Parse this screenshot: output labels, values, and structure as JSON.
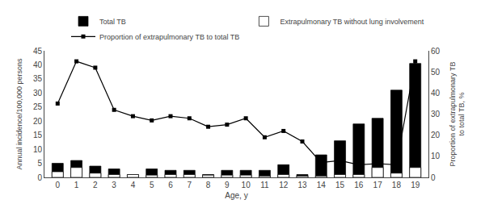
{
  "chart_data": {
    "type": "bar",
    "x": [
      0,
      1,
      2,
      3,
      4,
      5,
      6,
      7,
      8,
      9,
      10,
      11,
      12,
      13,
      14,
      15,
      16,
      17,
      18,
      19
    ],
    "series": [
      {
        "name": "Total TB",
        "type": "bar",
        "color": "#000000",
        "values": [
          5.0,
          6.0,
          4.0,
          3.0,
          1.0,
          3.0,
          2.5,
          2.5,
          1.0,
          2.5,
          2.5,
          2.5,
          4.5,
          1.0,
          8.0,
          13.0,
          19.0,
          21.0,
          31.0,
          40.5
        ]
      },
      {
        "name": "Extrapulmonary TB without lung involvement",
        "type": "bar",
        "color": "#ffffff",
        "values": [
          2.0,
          3.5,
          1.5,
          1.0,
          1.0,
          0.8,
          1.0,
          1.0,
          0.8,
          0.8,
          0.8,
          0.5,
          1.0,
          0.5,
          0.5,
          1.0,
          1.0,
          3.5,
          1.5,
          3.5
        ]
      },
      {
        "name": "Proportion of extrapulmonary TB to total TB",
        "type": "line",
        "axis": "y2",
        "color": "#000000",
        "marker": "square",
        "values": [
          35.0,
          55.0,
          52.0,
          32.0,
          29.0,
          27.0,
          29.0,
          28.0,
          24.0,
          25.0,
          28.0,
          19.0,
          22.0,
          17.0,
          7.0,
          8.0,
          6.0,
          6.5,
          6.0,
          55.0
        ]
      }
    ],
    "xlabel": "Age, y",
    "ylabel": "Annual incidence/100,000 persons",
    "y2label": "Proportion of extrapulmonary TB\nto total TB, %",
    "xlim": [
      -0.7,
      19.7
    ],
    "xticks": [
      0,
      1,
      2,
      3,
      4,
      5,
      6,
      7,
      8,
      9,
      10,
      11,
      12,
      13,
      14,
      15,
      16,
      17,
      18,
      19
    ],
    "ylim": [
      0,
      45
    ],
    "yticks": [
      0,
      5,
      10,
      15,
      20,
      25,
      30,
      35,
      40,
      45
    ],
    "y2lim": [
      0,
      60
    ],
    "y2ticks": [
      0,
      10,
      20,
      30,
      40,
      50,
      60
    ],
    "grid": false,
    "legend": "upper right"
  }
}
